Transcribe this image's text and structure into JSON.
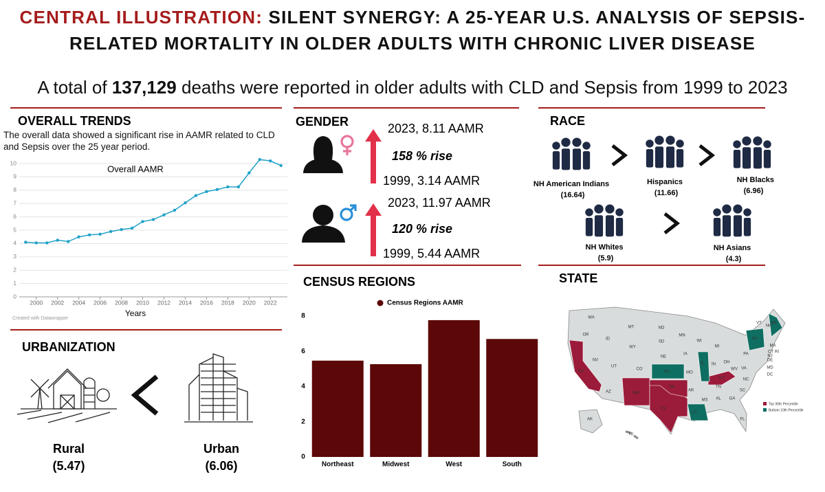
{
  "header": {
    "label": "CENTRAL ILLUSTRATION:",
    "title": "SILENT SYNERGY: A 25-YEAR U.S. ANALYSIS OF SEPSIS-RELATED MORTALITY IN OLDER ADULTS WITH CHRONIC LIVER DISEASE"
  },
  "summary": {
    "before": "A total of",
    "total": "137,129",
    "after": "deaths were reported in older adults with CLD and Sepsis from 1999 to 2023"
  },
  "overall": {
    "heading": "OVERALL TRENDS",
    "description": "The overall data showed a significant rise in AAMR related to CLD and Sepsis over the 25 year period."
  },
  "gender": {
    "heading": "GENDER",
    "groups": [
      {
        "latest": "2023, 8.11 AAMR",
        "rise": "158 % rise",
        "earliest": "1999, 3.14 AAMR"
      },
      {
        "latest": "2023, 11.97 AAMR",
        "rise": "120 % rise",
        "earliest": "1999, 5.44 AAMR"
      }
    ]
  },
  "race": {
    "heading": "RACE",
    "groups": [
      {
        "name": "NH American Indians",
        "value": "(16.64)"
      },
      {
        "name": "Hispanics",
        "value": "(11.66)"
      },
      {
        "name": "NH Blacks",
        "value": "(6.96)"
      },
      {
        "name": "NH Whites",
        "value": "(5.9)"
      },
      {
        "name": "NH Asians",
        "value": "(4.3)"
      }
    ]
  },
  "urbanization": {
    "heading": "URBANIZATION",
    "groups": [
      {
        "name": "Rural",
        "value": "(5.47)"
      },
      {
        "name": "Urban",
        "value": "(6.06)"
      }
    ]
  },
  "census": {
    "heading": "CENSUS REGIONS"
  },
  "state": {
    "heading": "STATE",
    "legend": [
      {
        "label": "Top 90th Percentile",
        "color": "#9b1b3a"
      },
      {
        "label": "Bottom 10th Percentile",
        "color": "#0f6e62"
      }
    ],
    "labels": [
      "WA",
      "OR",
      "CA",
      "NV",
      "ID",
      "MT",
      "WY",
      "UT",
      "AZ",
      "CO",
      "NM",
      "ND",
      "SD",
      "NE",
      "KS",
      "OK",
      "TX",
      "MN",
      "IA",
      "MO",
      "AR",
      "LA",
      "WI",
      "IL",
      "MI",
      "IN",
      "OH",
      "KY",
      "TN",
      "MS",
      "AL",
      "GA",
      "FL",
      "SC",
      "NC",
      "VA",
      "WV",
      "PA",
      "NY",
      "VT",
      "NH",
      "ME",
      "MA",
      "RI",
      "CT",
      "NJ",
      "DE",
      "MD",
      "DC",
      "AK",
      "HI"
    ]
  },
  "chart_data": [
    {
      "type": "line",
      "title": "Overall AAMR",
      "xlabel": "Years",
      "credit": "Created with Datawrapper",
      "color": "#1fa2c8",
      "grid": true,
      "x": [
        1999,
        2000,
        2001,
        2002,
        2003,
        2004,
        2005,
        2006,
        2007,
        2008,
        2009,
        2010,
        2011,
        2012,
        2013,
        2014,
        2015,
        2016,
        2017,
        2018,
        2019,
        2020,
        2021,
        2022,
        2023
      ],
      "values": [
        4.1,
        4.05,
        4.05,
        4.25,
        4.15,
        4.5,
        4.65,
        4.7,
        4.9,
        5.05,
        5.15,
        5.65,
        5.8,
        6.15,
        6.5,
        7.05,
        7.6,
        7.9,
        8.05,
        8.25,
        8.25,
        9.3,
        10.3,
        10.2,
        9.85
      ],
      "xlim": [
        1998.4,
        2023.6
      ],
      "xticks": [
        2000,
        2002,
        2004,
        2006,
        2008,
        2010,
        2012,
        2014,
        2016,
        2018,
        2020,
        2022
      ],
      "ylim": [
        0,
        10.6
      ],
      "yticks": [
        0,
        1,
        2,
        3,
        4,
        5,
        6,
        7,
        8,
        9,
        10
      ]
    },
    {
      "type": "bar",
      "legend": "Census Regions AAMR",
      "color": "#5c0808",
      "categories": [
        "Northeast",
        "Midwest",
        "West",
        "South"
      ],
      "values": [
        5.47,
        5.27,
        7.77,
        6.7
      ],
      "ylim": [
        0,
        8
      ],
      "yticks": [
        0,
        2,
        4,
        6,
        8
      ]
    }
  ]
}
